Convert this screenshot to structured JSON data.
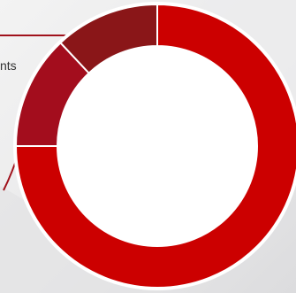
{
  "callout": {
    "label": "nts"
  },
  "colors": {
    "line": "#a0111b",
    "ring_border": "#ffffff",
    "hole": "#ffffff"
  },
  "chart_data": {
    "type": "pie",
    "style": "donut",
    "slices": [
      {
        "value": 75,
        "color": "#cc0000"
      },
      {
        "value": 13,
        "color": "#a30d1d"
      },
      {
        "value": 12,
        "color": "#8a1618"
      }
    ]
  }
}
